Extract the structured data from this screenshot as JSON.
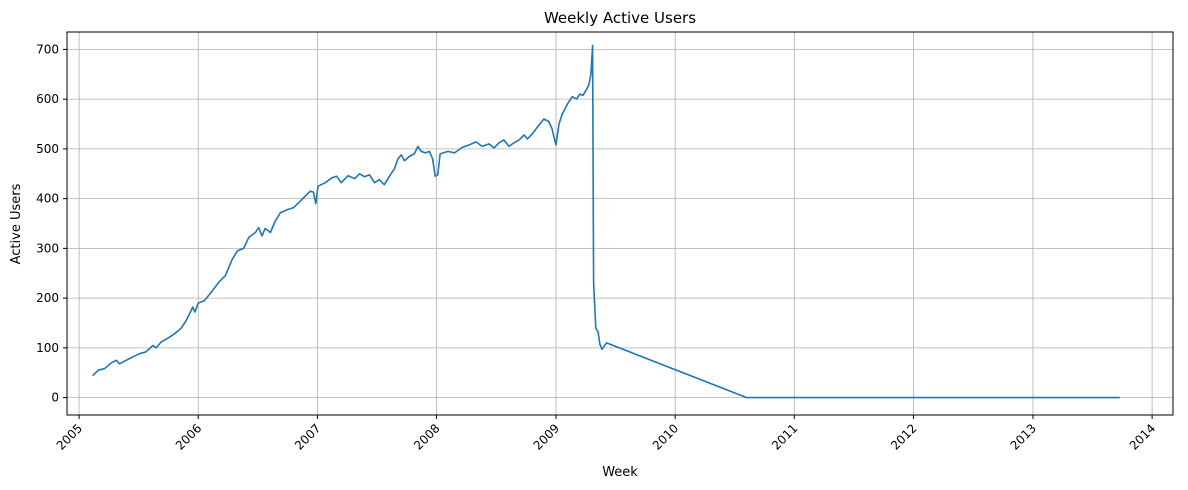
{
  "chart_data": {
    "type": "line",
    "title": "Weekly Active Users",
    "xlabel": "Week",
    "ylabel": "Active Users",
    "xlim": [
      "2004-11-25",
      "2014-03-06"
    ],
    "ylim": [
      -35,
      735
    ],
    "grid": true,
    "x_ticks": [
      "2005",
      "2006",
      "2007",
      "2008",
      "2009",
      "2010",
      "2011",
      "2012",
      "2013",
      "2014"
    ],
    "x_tick_dates": [
      "2005-01-01",
      "2006-01-01",
      "2007-01-01",
      "2008-01-01",
      "2009-01-01",
      "2010-01-01",
      "2011-01-01",
      "2012-01-01",
      "2013-01-01",
      "2014-01-01"
    ],
    "y_ticks": [
      "0",
      "100",
      "200",
      "300",
      "400",
      "500",
      "600",
      "700"
    ],
    "y_tick_values": [
      0,
      100,
      200,
      300,
      400,
      500,
      600,
      700
    ],
    "series": [
      {
        "color": "#1f77b4",
        "points": [
          [
            "2005-02-13",
            45
          ],
          [
            "2005-03-01",
            55
          ],
          [
            "2005-03-20",
            58
          ],
          [
            "2005-04-10",
            70
          ],
          [
            "2005-04-25",
            75
          ],
          [
            "2005-05-05",
            68
          ],
          [
            "2005-05-25",
            75
          ],
          [
            "2005-06-15",
            82
          ],
          [
            "2005-07-05",
            88
          ],
          [
            "2005-07-25",
            92
          ],
          [
            "2005-08-15",
            105
          ],
          [
            "2005-08-25",
            100
          ],
          [
            "2005-09-10",
            112
          ],
          [
            "2005-10-01",
            120
          ],
          [
            "2005-10-20",
            128
          ],
          [
            "2005-11-10",
            140
          ],
          [
            "2005-11-25",
            155
          ],
          [
            "2005-12-05",
            168
          ],
          [
            "2005-12-15",
            182
          ],
          [
            "2005-12-22",
            172
          ],
          [
            "2006-01-01",
            190
          ],
          [
            "2006-01-20",
            195
          ],
          [
            "2006-02-10",
            212
          ],
          [
            "2006-03-05",
            232
          ],
          [
            "2006-03-25",
            245
          ],
          [
            "2006-04-15",
            278
          ],
          [
            "2006-05-01",
            295
          ],
          [
            "2006-05-20",
            300
          ],
          [
            "2006-06-05",
            322
          ],
          [
            "2006-06-25",
            332
          ],
          [
            "2006-07-05",
            342
          ],
          [
            "2006-07-15",
            325
          ],
          [
            "2006-07-25",
            340
          ],
          [
            "2006-08-10",
            332
          ],
          [
            "2006-08-25",
            355
          ],
          [
            "2006-09-10",
            372
          ],
          [
            "2006-10-01",
            378
          ],
          [
            "2006-10-20",
            382
          ],
          [
            "2006-11-10",
            395
          ],
          [
            "2006-11-25",
            405
          ],
          [
            "2006-12-10",
            415
          ],
          [
            "2006-12-20",
            413
          ],
          [
            "2006-12-27",
            390
          ],
          [
            "2007-01-03",
            425
          ],
          [
            "2007-01-25",
            432
          ],
          [
            "2007-02-15",
            442
          ],
          [
            "2007-03-01",
            445
          ],
          [
            "2007-03-15",
            432
          ],
          [
            "2007-04-05",
            446
          ],
          [
            "2007-04-25",
            440
          ],
          [
            "2007-05-10",
            450
          ],
          [
            "2007-05-25",
            444
          ],
          [
            "2007-06-10",
            448
          ],
          [
            "2007-06-25",
            432
          ],
          [
            "2007-07-10",
            438
          ],
          [
            "2007-07-25",
            428
          ],
          [
            "2007-08-10",
            445
          ],
          [
            "2007-08-25",
            460
          ],
          [
            "2007-09-05",
            480
          ],
          [
            "2007-09-15",
            488
          ],
          [
            "2007-09-25",
            476
          ],
          [
            "2007-10-10",
            485
          ],
          [
            "2007-10-25",
            490
          ],
          [
            "2007-11-05",
            505
          ],
          [
            "2007-11-15",
            495
          ],
          [
            "2007-11-28",
            492
          ],
          [
            "2007-12-10",
            495
          ],
          [
            "2007-12-20",
            480
          ],
          [
            "2007-12-28",
            445
          ],
          [
            "2008-01-05",
            448
          ],
          [
            "2008-01-12",
            490
          ],
          [
            "2008-02-05",
            495
          ],
          [
            "2008-02-25",
            492
          ],
          [
            "2008-03-20",
            503
          ],
          [
            "2008-04-10",
            508
          ],
          [
            "2008-05-01",
            514
          ],
          [
            "2008-05-20",
            505
          ],
          [
            "2008-06-10",
            510
          ],
          [
            "2008-06-25",
            502
          ],
          [
            "2008-07-10",
            512
          ],
          [
            "2008-07-25",
            518
          ],
          [
            "2008-08-10",
            505
          ],
          [
            "2008-08-25",
            512
          ],
          [
            "2008-09-10",
            518
          ],
          [
            "2008-09-25",
            528
          ],
          [
            "2008-10-05",
            520
          ],
          [
            "2008-10-20",
            530
          ],
          [
            "2008-11-10",
            548
          ],
          [
            "2008-11-25",
            560
          ],
          [
            "2008-12-10",
            555
          ],
          [
            "2008-12-20",
            540
          ],
          [
            "2008-12-27",
            520
          ],
          [
            "2009-01-01",
            508
          ],
          [
            "2009-01-10",
            550
          ],
          [
            "2009-01-20",
            570
          ],
          [
            "2009-02-05",
            590
          ],
          [
            "2009-02-20",
            605
          ],
          [
            "2009-03-05",
            600
          ],
          [
            "2009-03-15",
            610
          ],
          [
            "2009-03-25",
            608
          ],
          [
            "2009-04-05",
            620
          ],
          [
            "2009-04-12",
            630
          ],
          [
            "2009-04-18",
            650
          ],
          [
            "2009-04-23",
            708
          ],
          [
            "2009-04-26",
            230
          ],
          [
            "2009-05-03",
            140
          ],
          [
            "2009-05-10",
            132
          ],
          [
            "2009-05-15",
            108
          ],
          [
            "2009-05-22",
            97
          ],
          [
            "2009-05-29",
            104
          ],
          [
            "2009-06-05",
            110
          ],
          [
            "2010-08-08",
            0
          ],
          [
            "2013-09-22",
            0
          ]
        ]
      }
    ]
  }
}
